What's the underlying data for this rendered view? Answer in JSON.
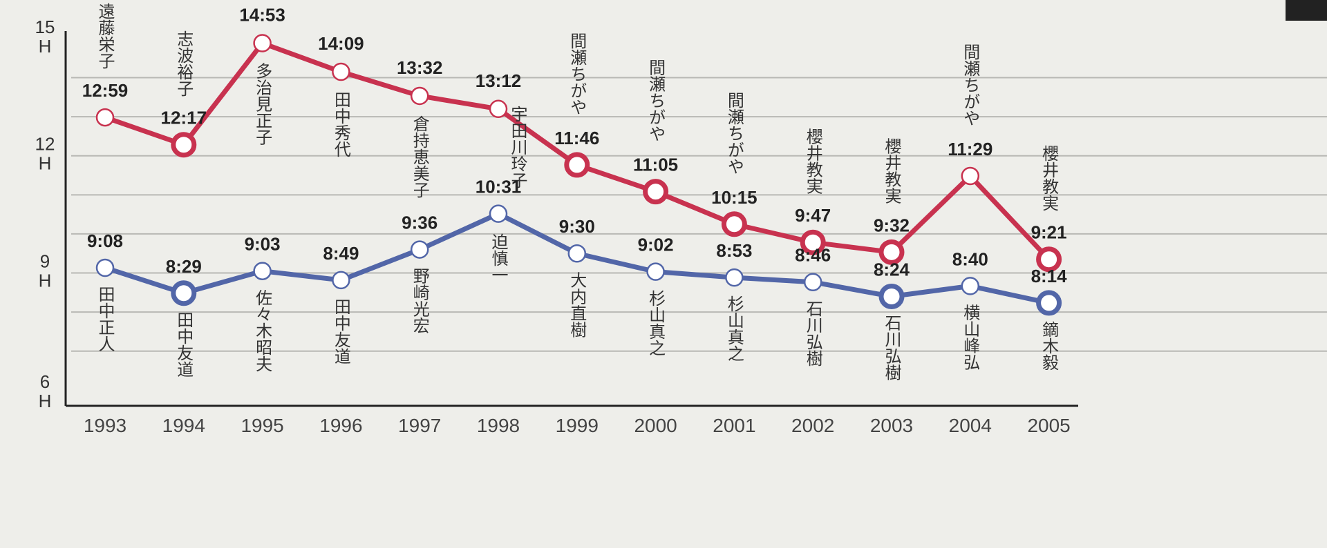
{
  "chart_data": {
    "type": "line",
    "y_axis": {
      "ticks": [
        {
          "value": 15,
          "label": "15",
          "unit": "H"
        },
        {
          "value": 12,
          "label": "12",
          "unit": "H"
        },
        {
          "value": 9,
          "label": "9",
          "unit": "H"
        },
        {
          "value": 6,
          "label": "6",
          "unit": "H"
        }
      ],
      "range_hours": [
        6,
        15
      ],
      "grid": "every hour"
    },
    "categories": [
      "1993",
      "1994",
      "1995",
      "1996",
      "1997",
      "1998",
      "1999",
      "2000",
      "2001",
      "2002",
      "2003",
      "2004",
      "2005"
    ],
    "series": [
      {
        "color": "#c8324f",
        "points": [
          {
            "year": "1993",
            "time": "12:59",
            "name": "遠藤栄子",
            "bold": false
          },
          {
            "year": "1994",
            "time": "12:17",
            "name": "志波裕子",
            "bold": true
          },
          {
            "year": "1995",
            "time": "14:53",
            "name": "多治見正子",
            "bold": false
          },
          {
            "year": "1996",
            "time": "14:09",
            "name": "田中秀代",
            "bold": false
          },
          {
            "year": "1997",
            "time": "13:32",
            "name": "倉持恵美子",
            "bold": false
          },
          {
            "year": "1998",
            "time": "13:12",
            "name": "宇田川玲子",
            "bold": false
          },
          {
            "year": "1999",
            "time": "11:46",
            "name": "間瀬ちがや",
            "bold": true
          },
          {
            "year": "2000",
            "time": "11:05",
            "name": "間瀬ちがや",
            "bold": true
          },
          {
            "year": "2001",
            "time": "10:15",
            "name": "間瀬ちがや",
            "bold": true
          },
          {
            "year": "2002",
            "time": "9:47",
            "name": "櫻井教実",
            "bold": true
          },
          {
            "year": "2003",
            "time": "9:32",
            "name": "櫻井教実",
            "bold": true
          },
          {
            "year": "2004",
            "time": "11:29",
            "name": "間瀬ちがや",
            "bold": false
          },
          {
            "year": "2005",
            "time": "9:21",
            "name": "櫻井教実",
            "bold": true
          }
        ]
      },
      {
        "color": "#5266a8",
        "points": [
          {
            "year": "1993",
            "time": "9:08",
            "name": "田中正人",
            "bold": false
          },
          {
            "year": "1994",
            "time": "8:29",
            "name": "田中友道",
            "bold": true
          },
          {
            "year": "1995",
            "time": "9:03",
            "name": "佐々木昭夫",
            "bold": false
          },
          {
            "year": "1996",
            "time": "8:49",
            "name": "田中友道",
            "bold": false
          },
          {
            "year": "1997",
            "time": "9:36",
            "name": "野崎光宏",
            "bold": false
          },
          {
            "year": "1998",
            "time": "10:31",
            "name": "迫慎一",
            "bold": false
          },
          {
            "year": "1999",
            "time": "9:30",
            "name": "大内直樹",
            "bold": false
          },
          {
            "year": "2000",
            "time": "9:02",
            "name": "杉山真之",
            "bold": false
          },
          {
            "year": "2001",
            "time": "8:53",
            "name": "杉山真之",
            "bold": false
          },
          {
            "year": "2002",
            "time": "8:46",
            "name": "石川弘樹",
            "bold": false
          },
          {
            "year": "2003",
            "time": "8:24",
            "name": "石川弘樹",
            "bold": true
          },
          {
            "year": "2004",
            "time": "8:40",
            "name": "横山峰弘",
            "bold": false
          },
          {
            "year": "2005",
            "time": "8:14",
            "name": "鏑木毅",
            "bold": true
          }
        ]
      }
    ]
  }
}
